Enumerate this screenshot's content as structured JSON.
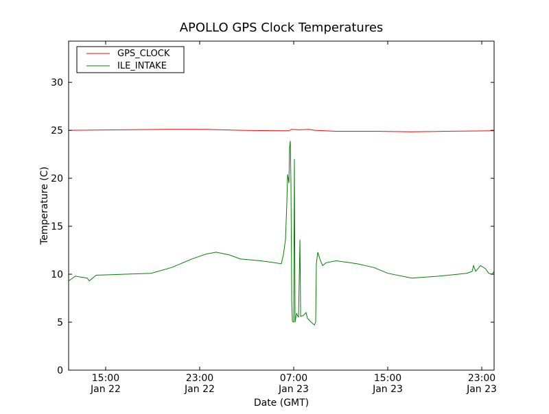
{
  "chart_data": {
    "type": "line",
    "title": "APOLLO GPS Clock Temperatures",
    "xlabel": "Date (GMT)",
    "ylabel": "Temperature (C)",
    "x_units": "hours since Jan 22 00:00 GMT",
    "xlim": [
      11.85,
      48.05
    ],
    "ylim": [
      0,
      34.3
    ],
    "grid": false,
    "legend_placement": "top-left",
    "yticks": [
      0,
      5,
      10,
      15,
      20,
      25,
      30
    ],
    "xticks": [
      {
        "value": 15,
        "time": "15:00",
        "date": "Jan 22"
      },
      {
        "value": 23,
        "time": "23:00",
        "date": "Jan 22"
      },
      {
        "value": 31,
        "time": "07:00",
        "date": "Jan 23"
      },
      {
        "value": 39,
        "time": "15:00",
        "date": "Jan 23"
      },
      {
        "value": 47,
        "time": "23:00",
        "date": "Jan 23"
      }
    ],
    "series": [
      {
        "name": "GPS_CLOCK",
        "color": "#ff0000",
        "x": [
          11.85,
          16.5,
          20.0,
          23.5,
          26.5,
          30.0,
          30.6,
          30.8,
          31.5,
          32.3,
          32.8,
          34.6,
          38.0,
          41.0,
          44.0,
          48.05
        ],
        "y": [
          25.0,
          25.05,
          25.1,
          25.1,
          25.0,
          24.95,
          24.95,
          25.1,
          25.05,
          25.1,
          25.0,
          24.9,
          24.9,
          24.85,
          24.9,
          24.95
        ]
      },
      {
        "name": "ILE_INTAKE",
        "color": "#008000",
        "x": [
          11.85,
          12.43,
          13.43,
          13.6,
          14.19,
          16.52,
          18.86,
          20.61,
          22.36,
          23.53,
          24.4,
          25.57,
          26.45,
          28.2,
          29.95,
          30.13,
          30.3,
          30.42,
          30.48,
          30.59,
          30.65,
          30.71,
          30.77,
          30.83,
          30.89,
          31.0,
          31.06,
          31.12,
          31.24,
          31.41,
          31.53,
          31.59,
          31.82,
          32.05,
          32.17,
          32.4,
          32.76,
          32.87,
          32.93,
          33.05,
          33.28,
          33.46,
          33.75,
          34.62,
          36.38,
          37.84,
          39.0,
          41.05,
          43.38,
          45.72,
          46.19,
          46.3,
          46.48,
          46.89,
          47.3,
          47.59,
          47.88,
          48.05
        ],
        "y": [
          9.3,
          9.8,
          9.6,
          9.3,
          9.9,
          10.0,
          10.1,
          10.7,
          11.6,
          12.1,
          12.3,
          12.0,
          11.6,
          11.4,
          11.1,
          12.1,
          13.6,
          17.5,
          20.4,
          19.5,
          23.2,
          23.9,
          19.5,
          7.1,
          5.1,
          5.0,
          22.0,
          5.0,
          5.9,
          5.5,
          13.6,
          5.6,
          5.7,
          6.0,
          5.4,
          5.1,
          4.7,
          5.0,
          11.1,
          12.3,
          11.4,
          10.9,
          11.2,
          11.4,
          11.1,
          10.7,
          10.1,
          9.6,
          9.8,
          10.1,
          10.3,
          10.9,
          10.3,
          10.9,
          10.6,
          10.1,
          10.0,
          10.3
        ]
      }
    ]
  }
}
